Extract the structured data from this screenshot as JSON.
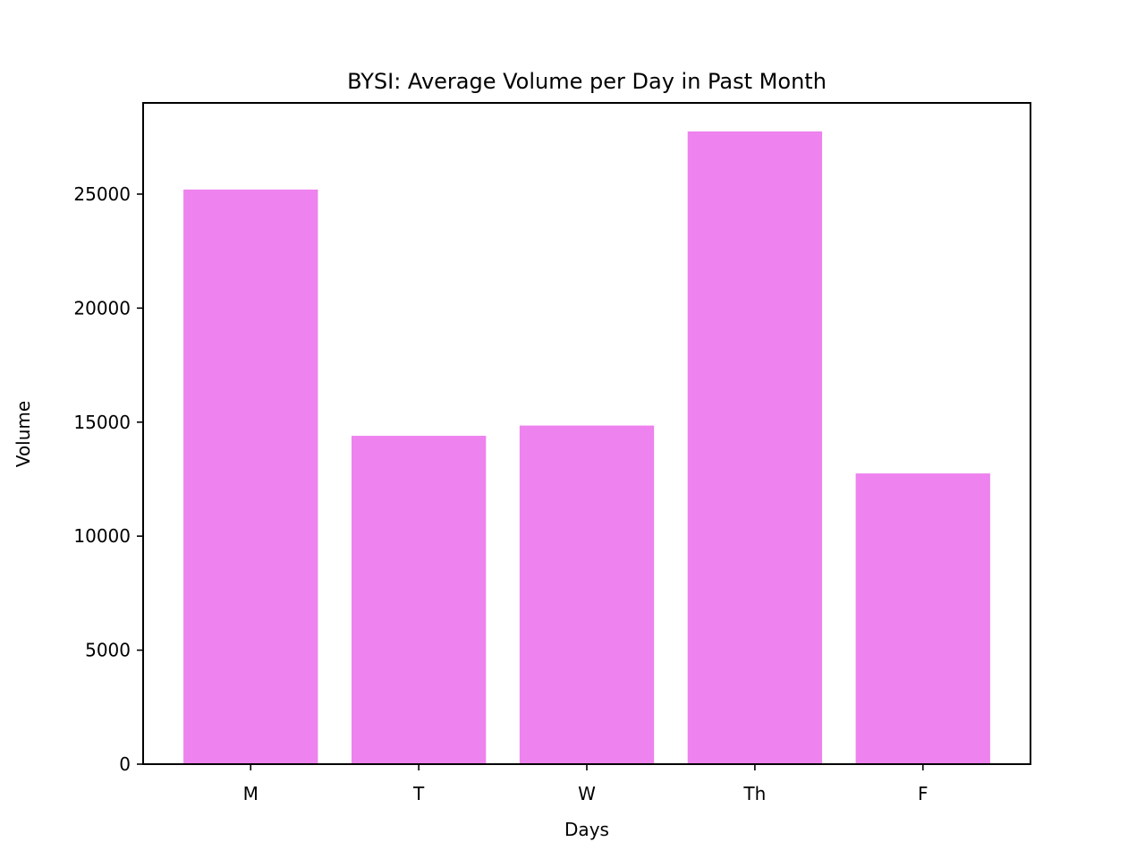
{
  "chart_data": {
    "type": "bar",
    "title": "BYSI: Average Volume per Day in Past Month",
    "xlabel": "Days",
    "ylabel": "Volume",
    "categories": [
      "M",
      "T",
      "W",
      "Th",
      "F"
    ],
    "values": [
      25200,
      14400,
      14850,
      27750,
      12750
    ],
    "ylim": [
      0,
      29000
    ],
    "yticks": [
      0,
      5000,
      10000,
      15000,
      20000,
      25000
    ],
    "ytick_labels": [
      "0",
      "5000",
      "10000",
      "15000",
      "20000",
      "25000"
    ],
    "bar_color": "#ee82ee",
    "grid": false,
    "legend": "none"
  }
}
